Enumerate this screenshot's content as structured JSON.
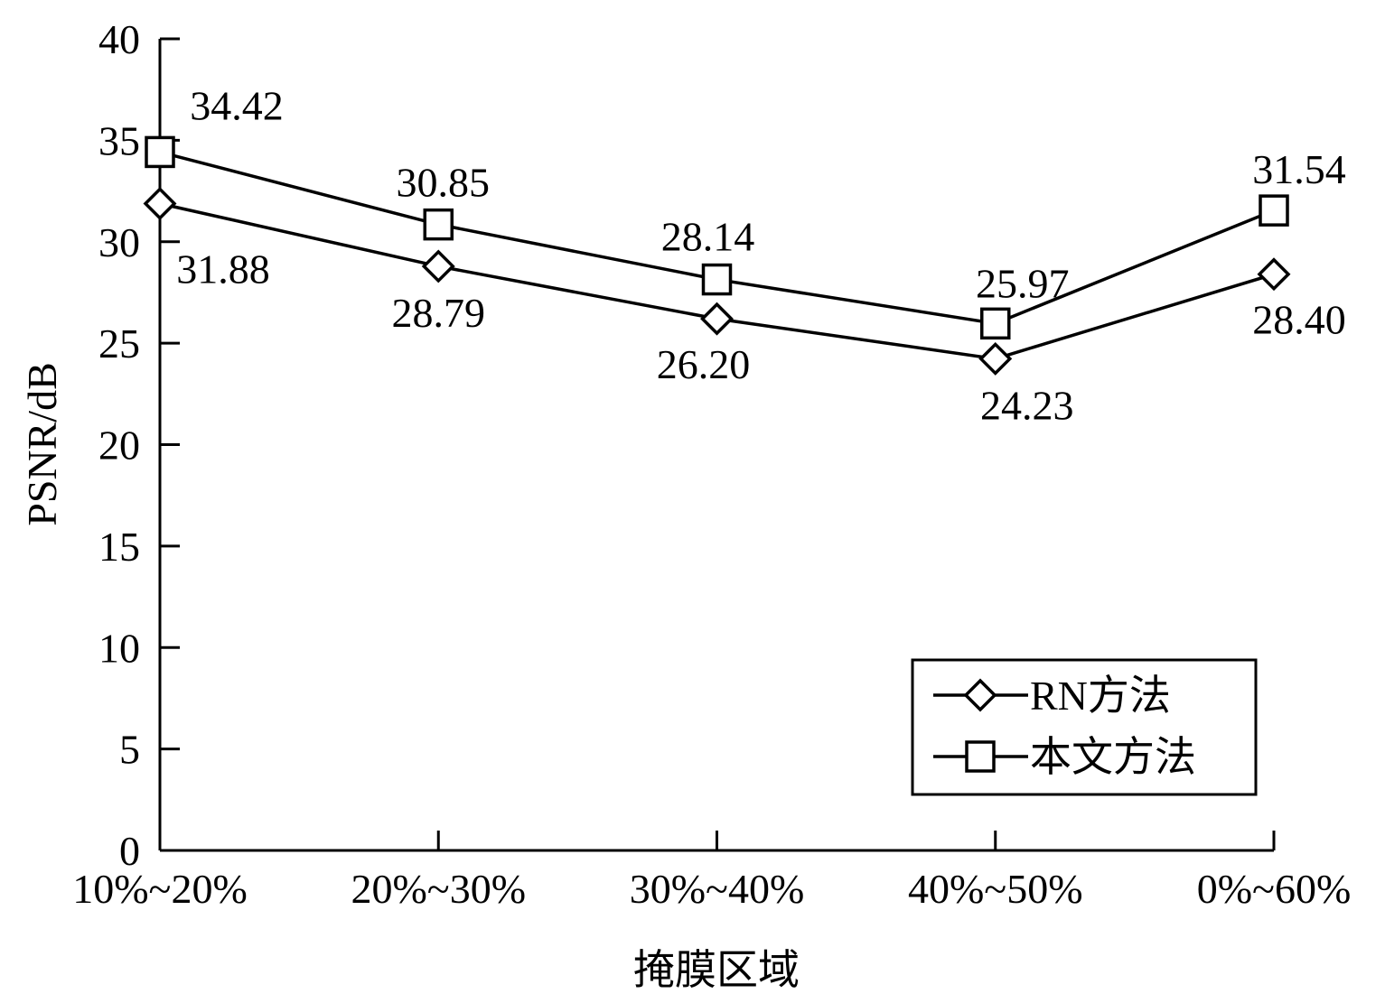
{
  "chart_data": {
    "type": "line",
    "title": "",
    "xlabel": "掩膜区域",
    "ylabel": "PSNR/dB",
    "categories": [
      "10%~20%",
      "20%~30%",
      "30%~40%",
      "40%~50%",
      "0%~60%"
    ],
    "ylim": [
      0,
      40
    ],
    "yticks": [
      0,
      5,
      10,
      15,
      20,
      25,
      30,
      35,
      40
    ],
    "grid": false,
    "legend_position": "bottom-right",
    "series": [
      {
        "name": "RN方法",
        "marker": "diamond",
        "values": [
          31.88,
          28.79,
          26.2,
          24.23,
          28.4
        ],
        "labels": [
          "31.88",
          "28.79",
          "26.20",
          "24.23",
          "28.40"
        ]
      },
      {
        "name": "本文方法",
        "marker": "square",
        "values": [
          34.42,
          30.85,
          28.14,
          25.97,
          31.54
        ],
        "labels": [
          "34.42",
          "30.85",
          "28.14",
          "25.97",
          "31.54"
        ]
      }
    ],
    "colors": {
      "line": "#000000",
      "background": "#ffffff"
    }
  }
}
